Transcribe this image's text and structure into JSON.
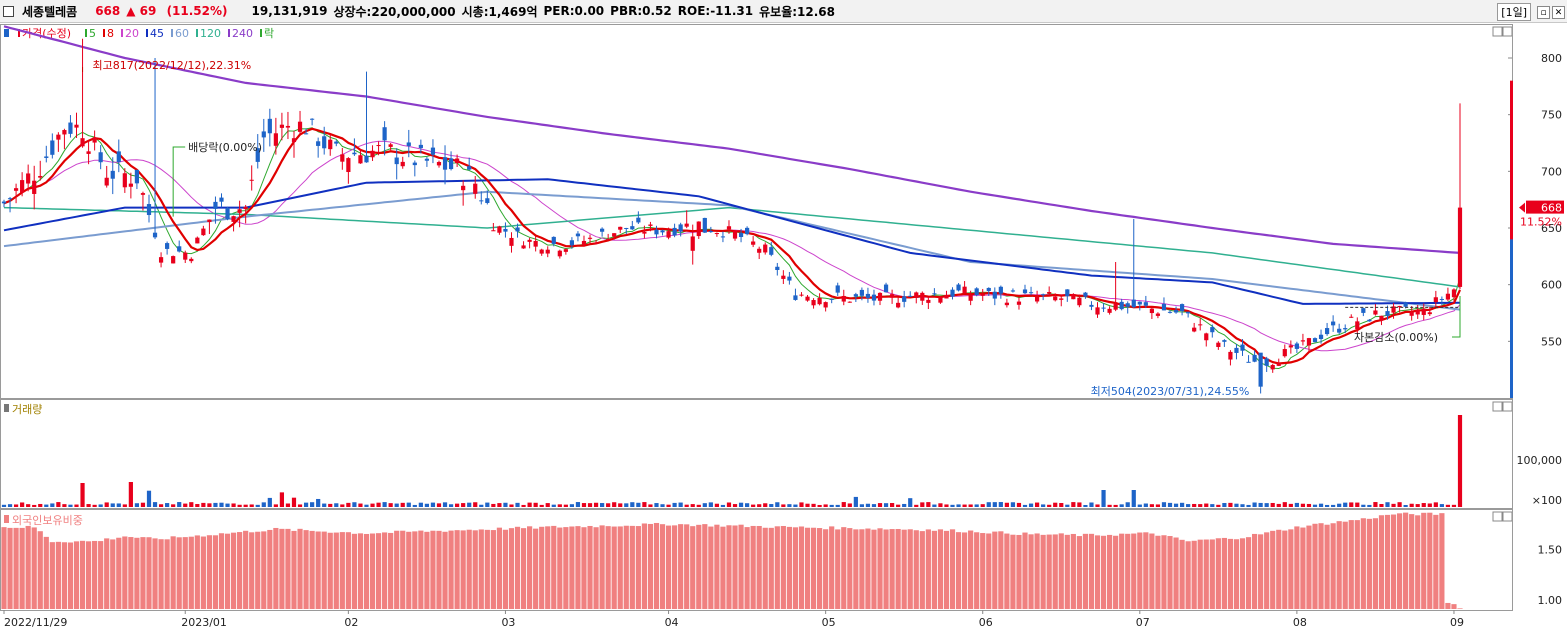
{
  "header": {
    "name": "세종텔레콤",
    "price": "668",
    "change": "▲ 69",
    "change_pct": "(11.52%)",
    "stats": [
      "19,131,919",
      "상장수:220,000,000",
      "시총:1,469억",
      "PER:0.00",
      "PBR:0.52",
      "ROE:-11.31",
      "유보율:12.68"
    ],
    "period": "[1일]",
    "min_icon": "minimize-icon",
    "close_icon": "close-icon"
  },
  "colors": {
    "up": "#e8001c",
    "down": "#1e64c8",
    "ma5": "#2ea82e",
    "ma8": "#e00000",
    "ma20": "#cc44cc",
    "ma45": "#1030c0",
    "ma60": "#7a9cd0",
    "ma120": "#30b090",
    "ma240": "#8a3cc8",
    "foreign": "#f08080"
  },
  "chart_data": [
    {
      "type": "candlestick",
      "legend": [
        {
          "label": "가격(수정)",
          "color": "#e8001c"
        },
        {
          "label": "5",
          "color": "#2ea82e"
        },
        {
          "label": "8",
          "color": "#e00000"
        },
        {
          "label": "20",
          "color": "#cc44cc"
        },
        {
          "label": "45",
          "color": "#1030c0"
        },
        {
          "label": "60",
          "color": "#7a9cd0"
        },
        {
          "label": "120",
          "color": "#30b090"
        },
        {
          "label": "240",
          "color": "#8a3cc8"
        },
        {
          "label": "락",
          "color": "#2ea82e"
        }
      ],
      "x_ticks": [
        "2022/11/29",
        "2023/01",
        "02",
        "03",
        "04",
        "05",
        "06",
        "07",
        "08",
        "09"
      ],
      "y_ticks": [
        550,
        600,
        650,
        700,
        750,
        800
      ],
      "ylim": [
        500,
        830
      ],
      "current_price": "668",
      "current_pct": "11.52%",
      "annotations": {
        "high": "최고817(2022/12/12),22.31%",
        "low": "최저504(2023/07/31),24.55%",
        "dividend": "배당락(0.00%)",
        "capital_reduction": "자본감소(0.00%)"
      },
      "waypoints_close": [
        [
          0,
          672
        ],
        [
          6,
          705
        ],
        [
          10,
          740
        ],
        [
          13,
          738
        ],
        [
          17,
          700
        ],
        [
          22,
          695
        ],
        [
          26,
          630
        ],
        [
          31,
          628
        ],
        [
          35,
          668
        ],
        [
          40,
          668
        ],
        [
          43,
          730
        ],
        [
          47,
          740
        ],
        [
          50,
          740
        ],
        [
          55,
          715
        ],
        [
          63,
          718
        ],
        [
          70,
          708
        ],
        [
          75,
          702
        ],
        [
          78,
          690
        ],
        [
          82,
          650
        ],
        [
          87,
          638
        ],
        [
          92,
          635
        ],
        [
          97,
          640
        ],
        [
          103,
          650
        ],
        [
          109,
          648
        ],
        [
          115,
          652
        ],
        [
          121,
          645
        ],
        [
          126,
          630
        ],
        [
          131,
          592
        ],
        [
          140,
          588
        ],
        [
          145,
          587
        ],
        [
          150,
          590
        ],
        [
          158,
          593
        ],
        [
          165,
          590
        ],
        [
          175,
          588
        ],
        [
          180,
          583
        ],
        [
          188,
          580
        ],
        [
          195,
          575
        ],
        [
          202,
          545
        ],
        [
          208,
          530
        ],
        [
          215,
          545
        ],
        [
          218,
          556
        ],
        [
          223,
          567
        ],
        [
          228,
          575
        ],
        [
          235,
          576
        ],
        [
          241,
          600
        ],
        [
          242,
          668
        ]
      ],
      "ma240_points": [
        [
          0,
          828
        ],
        [
          20,
          800
        ],
        [
          40,
          778
        ],
        [
          60,
          766
        ],
        [
          80,
          748
        ],
        [
          100,
          733
        ],
        [
          120,
          720
        ],
        [
          140,
          702
        ],
        [
          160,
          682
        ],
        [
          180,
          665
        ],
        [
          200,
          650
        ],
        [
          220,
          636
        ],
        [
          241,
          628
        ]
      ]
    },
    {
      "type": "bar",
      "title": "거래량",
      "y_ticks": [
        "100,000",
        "×100"
      ],
      "ylim": [
        0,
        200000
      ]
    },
    {
      "type": "bar",
      "title": "외국인보유비중",
      "y_ticks": [
        "1.50",
        "1.00"
      ],
      "ylim": [
        0.9,
        1.9
      ],
      "waypoints": [
        [
          0,
          1.72
        ],
        [
          5,
          1.72
        ],
        [
          8,
          1.58
        ],
        [
          15,
          1.58
        ],
        [
          20,
          1.63
        ],
        [
          25,
          1.6
        ],
        [
          35,
          1.65
        ],
        [
          45,
          1.7
        ],
        [
          60,
          1.66
        ],
        [
          70,
          1.68
        ],
        [
          80,
          1.7
        ],
        [
          90,
          1.72
        ],
        [
          110,
          1.75
        ],
        [
          130,
          1.72
        ],
        [
          150,
          1.7
        ],
        [
          160,
          1.68
        ],
        [
          170,
          1.65
        ],
        [
          180,
          1.64
        ],
        [
          190,
          1.66
        ],
        [
          196,
          1.58
        ],
        [
          205,
          1.62
        ],
        [
          215,
          1.73
        ],
        [
          225,
          1.8
        ],
        [
          230,
          1.85
        ],
        [
          238,
          1.85
        ],
        [
          239,
          0.98
        ],
        [
          241,
          0.93
        ]
      ]
    }
  ]
}
